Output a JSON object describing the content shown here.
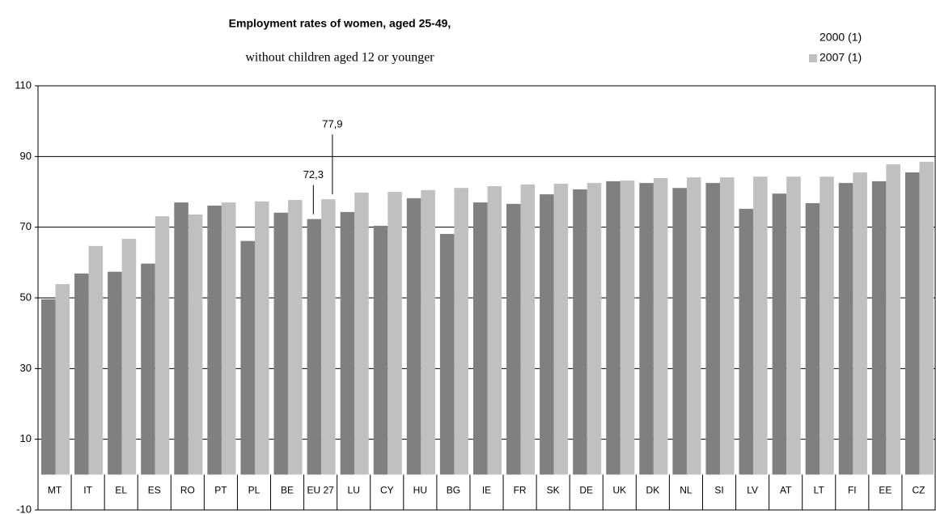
{
  "chart_data": {
    "type": "bar",
    "title": "Employment rates of women, aged 25-49,",
    "subtitle": "without children aged 12 or younger",
    "categories": [
      "MT",
      "IT",
      "EL",
      "ES",
      "RO",
      "PT",
      "PL",
      "BE",
      "EU 27",
      "LU",
      "CY",
      "HU",
      "BG",
      "IE",
      "FR",
      "SK",
      "DE",
      "UK",
      "DK",
      "NL",
      "SI",
      "LV",
      "AT",
      "LT",
      "FI",
      "EE",
      "CZ"
    ],
    "series": [
      {
        "name": "2000 (1)",
        "color": "#808080",
        "values": [
          49.6,
          56.9,
          57.4,
          59.7,
          77.0,
          76.1,
          66.1,
          74.1,
          72.3,
          74.3,
          70.4,
          78.2,
          68.1,
          77.0,
          76.6,
          79.3,
          80.7,
          83.0,
          82.5,
          81.1,
          82.5,
          75.2,
          79.5,
          76.8,
          82.5,
          83.0,
          85.5
        ],
        "value_labels": [
          null,
          null,
          null,
          null,
          null,
          null,
          null,
          null,
          "72,3",
          null,
          null,
          null,
          null,
          null,
          null,
          null,
          null,
          null,
          null,
          null,
          null,
          null,
          null,
          null,
          null,
          null,
          null
        ]
      },
      {
        "name": "2007 (1)",
        "color": "#c0c0c0",
        "values": [
          53.9,
          64.7,
          66.7,
          73.1,
          73.6,
          77.0,
          77.3,
          77.7,
          77.9,
          79.8,
          80.0,
          80.5,
          81.1,
          81.6,
          82.1,
          82.3,
          82.5,
          83.2,
          83.9,
          84.1,
          84.1,
          84.3,
          84.3,
          84.3,
          85.5,
          87.8,
          88.5
        ],
        "value_labels": [
          null,
          null,
          null,
          null,
          null,
          null,
          null,
          null,
          "77,9",
          null,
          null,
          null,
          null,
          null,
          null,
          null,
          null,
          null,
          null,
          null,
          null,
          null,
          null,
          null,
          null,
          null,
          null
        ]
      }
    ],
    "ylim": [
      -10,
      110
    ],
    "yticks": [
      -10,
      10,
      30,
      50,
      70,
      90,
      110
    ],
    "grid": true
  }
}
